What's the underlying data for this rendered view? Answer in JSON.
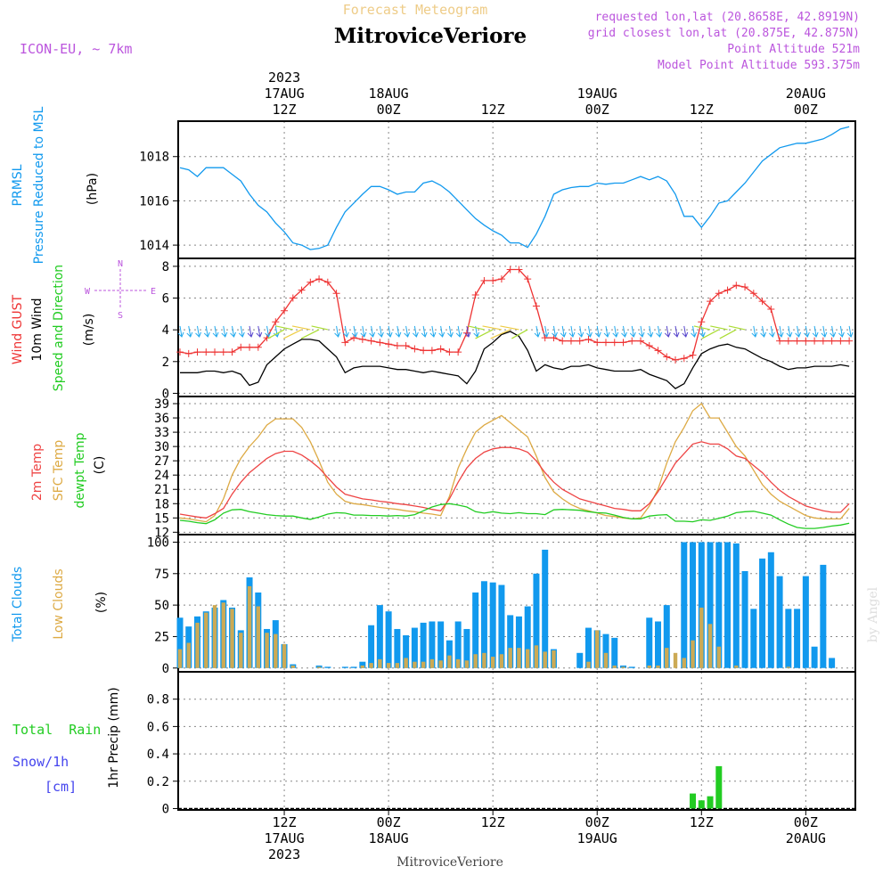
{
  "header": {
    "top_title": "Forecast Meteogram",
    "station": "MitroviceVeriore",
    "model": "ICON-EU, ~ 7km",
    "requested": "requested lon,lat (20.8658E, 42.8919N)",
    "closest": "grid closest lon,lat (20.875E, 42.875N)",
    "point_altitude": "Point Altitude 521m",
    "model_altitude": "Model Point Altitude 593.375m"
  },
  "time_axis": {
    "top_labels": [
      {
        "h": 12,
        "lines": [
          "2023",
          "17AUG",
          "12Z"
        ]
      },
      {
        "h": 24,
        "lines": [
          "18AUG",
          "00Z"
        ]
      },
      {
        "h": 36,
        "lines": [
          "12Z"
        ]
      },
      {
        "h": 48,
        "lines": [
          "19AUG",
          "00Z"
        ]
      },
      {
        "h": 60,
        "lines": [
          "12Z"
        ]
      },
      {
        "h": 72,
        "lines": [
          "20AUG",
          "00Z"
        ]
      }
    ],
    "bottom_labels": [
      {
        "h": 12,
        "lines": [
          "12Z",
          "17AUG",
          "2023"
        ]
      },
      {
        "h": 24,
        "lines": [
          "00Z",
          "18AUG"
        ]
      },
      {
        "h": 36,
        "lines": [
          "12Z"
        ]
      },
      {
        "h": 48,
        "lines": [
          "00Z",
          "19AUG"
        ]
      },
      {
        "h": 60,
        "lines": [
          "12Z"
        ]
      },
      {
        "h": 72,
        "lines": [
          "00Z",
          "20AUG"
        ]
      }
    ],
    "footer_station": "MitroviceVeriore"
  },
  "panel_labels": {
    "prmsl": {
      "line1": "PRMSL",
      "line2": "Pressure Reduced to MSL",
      "unit": "(hPa)"
    },
    "wind": {
      "gust": "Wind GUST",
      "wind10": "10m Wind",
      "speeddir": "Speed and Direction",
      "unit": "(m/s)",
      "compass_n": "N",
      "compass_s": "S",
      "compass_w": "W",
      "compass_e": "E"
    },
    "temp": {
      "t2m": "2m Temp",
      "sfc": "SFC Temp",
      "dewpt": "dewpt Temp",
      "unit": "(C)"
    },
    "clouds": {
      "total": "Total Clouds",
      "low": "Low Clouds",
      "unit": "(%)"
    },
    "precip": {
      "rain": "Total  Rain",
      "snow": "Snow/1h",
      "snow_unit": "[cm]",
      "axis": "1hr Precip (mm)"
    }
  },
  "watermark": "by Angel",
  "colors": {
    "pressure": "#1199ee",
    "gust": "#ee3333",
    "wind": "#000000",
    "t2m": "#ee4444",
    "sfc": "#ddaa44",
    "dewpt": "#22cc22",
    "total_clouds": "#1199ee",
    "low_clouds": "#ccaa55",
    "rain": "#22cc22",
    "snow": "#4444ee",
    "header_purple": "#bb55dd",
    "title_orange": "#eecc88",
    "grid": "#888888"
  },
  "chart_data": [
    {
      "type": "line",
      "id": "pressure",
      "ylabel": "(hPa)",
      "ylim": [
        1013.4,
        1019.6
      ],
      "yticks": [
        1014,
        1016,
        1018
      ],
      "x_hours": [
        0,
        1,
        2,
        3,
        4,
        5,
        6,
        7,
        8,
        9,
        10,
        11,
        12,
        13,
        14,
        15,
        16,
        17,
        18,
        19,
        20,
        21,
        22,
        23,
        24,
        25,
        26,
        27,
        28,
        29,
        30,
        31,
        32,
        33,
        34,
        35,
        36,
        37,
        38,
        39,
        40,
        41,
        42,
        43,
        44,
        45,
        46,
        47,
        48,
        49,
        50,
        51,
        52,
        53,
        54,
        55,
        56,
        57,
        58,
        59,
        60,
        61,
        62,
        63,
        64,
        65,
        66,
        67,
        68,
        69,
        70,
        71,
        72,
        73,
        74,
        75,
        76,
        77
      ],
      "series": [
        {
          "values": [
            1017.5,
            1017.4,
            1017.1,
            1017.5,
            1017.5,
            1017.5,
            1017.2,
            1016.9,
            1016.3,
            1015.8,
            1015.5,
            1015.0,
            1014.6,
            1014.1,
            1014.0,
            1013.8,
            1013.85,
            1014.0,
            1014.8,
            1015.5,
            1015.9,
            1016.3,
            1016.65,
            1016.65,
            1016.5,
            1016.3,
            1016.4,
            1016.4,
            1016.8,
            1016.9,
            1016.7,
            1016.4,
            1016.0,
            1015.6,
            1015.2,
            1014.9,
            1014.65,
            1014.45,
            1014.1,
            1014.1,
            1013.9,
            1014.5,
            1015.3,
            1016.3,
            1016.5,
            1016.6,
            1016.65,
            1016.65,
            1016.8,
            1016.75,
            1016.8,
            1016.8,
            1016.95,
            1017.1,
            1016.95,
            1017.1,
            1016.9,
            1016.3,
            1015.3,
            1015.3,
            1014.8,
            1015.3,
            1015.9,
            1016.0,
            1016.4,
            1016.8,
            1017.3,
            1017.8,
            1018.1,
            1018.4,
            1018.5,
            1018.6,
            1018.6,
            1018.7,
            1018.8,
            1019.0,
            1019.25,
            1019.35
          ]
        }
      ]
    },
    {
      "type": "line",
      "id": "wind",
      "ylabel": "(m/s)",
      "ylim": [
        -0.2,
        8.5
      ],
      "yticks": [
        0,
        2,
        4,
        6,
        8
      ],
      "x_hours": [
        0,
        1,
        2,
        3,
        4,
        5,
        6,
        7,
        8,
        9,
        10,
        11,
        12,
        13,
        14,
        15,
        16,
        17,
        18,
        19,
        20,
        21,
        22,
        23,
        24,
        25,
        26,
        27,
        28,
        29,
        30,
        31,
        32,
        33,
        34,
        35,
        36,
        37,
        38,
        39,
        40,
        41,
        42,
        43,
        44,
        45,
        46,
        47,
        48,
        49,
        50,
        51,
        52,
        53,
        54,
        55,
        56,
        57,
        58,
        59,
        60,
        61,
        62,
        63,
        64,
        65,
        66,
        67,
        68,
        69,
        70,
        71,
        72,
        73,
        74,
        75,
        76,
        77
      ],
      "series": [
        {
          "name": "Wind GUST",
          "values": [
            2.6,
            2.5,
            2.6,
            2.6,
            2.6,
            2.6,
            2.6,
            2.9,
            2.9,
            2.9,
            3.5,
            4.5,
            5.2,
            6.0,
            6.5,
            7.0,
            7.2,
            7.0,
            6.3,
            3.2,
            3.5,
            3.4,
            3.3,
            3.2,
            3.1,
            3.0,
            3.0,
            2.8,
            2.7,
            2.7,
            2.8,
            2.6,
            2.6,
            3.8,
            6.2,
            7.1,
            7.1,
            7.2,
            7.8,
            7.8,
            7.2,
            5.5,
            3.5,
            3.5,
            3.3,
            3.3,
            3.3,
            3.4,
            3.2,
            3.2,
            3.2,
            3.2,
            3.3,
            3.3,
            3.0,
            2.7,
            2.3,
            2.1,
            2.2,
            2.4,
            4.5,
            5.8,
            6.3,
            6.5,
            6.8,
            6.7,
            6.3,
            5.8,
            5.3,
            3.3,
            3.3,
            3.3,
            3.3,
            3.3,
            3.3,
            3.3,
            3.3,
            3.3
          ]
        },
        {
          "name": "10m Wind",
          "values": [
            1.3,
            1.3,
            1.3,
            1.4,
            1.4,
            1.3,
            1.4,
            1.2,
            0.5,
            0.7,
            1.8,
            2.3,
            2.8,
            3.1,
            3.4,
            3.4,
            3.3,
            2.8,
            2.3,
            1.3,
            1.6,
            1.7,
            1.7,
            1.7,
            1.6,
            1.5,
            1.5,
            1.4,
            1.3,
            1.4,
            1.3,
            1.2,
            1.1,
            0.6,
            1.4,
            2.8,
            3.2,
            3.7,
            3.9,
            3.6,
            2.7,
            1.4,
            1.8,
            1.6,
            1.5,
            1.7,
            1.7,
            1.8,
            1.6,
            1.5,
            1.4,
            1.4,
            1.4,
            1.5,
            1.2,
            1.0,
            0.8,
            0.3,
            0.6,
            1.6,
            2.5,
            2.8,
            3.0,
            3.1,
            2.9,
            2.8,
            2.5,
            2.2,
            2.0,
            1.7,
            1.5,
            1.6,
            1.6,
            1.7,
            1.7,
            1.7,
            1.8,
            1.7
          ]
        }
      ]
    },
    {
      "type": "line",
      "id": "temperature",
      "ylabel": "(C)",
      "ylim": [
        11.5,
        40.5
      ],
      "yticks": [
        12,
        15,
        18,
        21,
        24,
        27,
        30,
        33,
        36,
        39
      ],
      "x_hours": [
        0,
        1,
        2,
        3,
        4,
        5,
        6,
        7,
        8,
        9,
        10,
        11,
        12,
        13,
        14,
        15,
        16,
        17,
        18,
        19,
        20,
        21,
        22,
        23,
        24,
        25,
        26,
        27,
        28,
        29,
        30,
        31,
        32,
        33,
        34,
        35,
        36,
        37,
        38,
        39,
        40,
        41,
        42,
        43,
        44,
        45,
        46,
        47,
        48,
        49,
        50,
        51,
        52,
        53,
        54,
        55,
        56,
        57,
        58,
        59,
        60,
        61,
        62,
        63,
        64,
        65,
        66,
        67,
        68,
        69,
        70,
        71,
        72,
        73,
        74,
        75,
        76,
        77
      ],
      "series": [
        {
          "name": "2m Temp",
          "values": [
            15.8,
            15.5,
            15.2,
            15.0,
            15.9,
            17.0,
            20.0,
            22.5,
            24.5,
            26.0,
            27.5,
            28.5,
            29.0,
            29.0,
            28.2,
            27.0,
            25.5,
            23.5,
            21.5,
            20.0,
            19.5,
            19.0,
            18.8,
            18.5,
            18.3,
            18.0,
            17.8,
            17.5,
            17.2,
            16.8,
            16.5,
            19.0,
            22.5,
            25.5,
            27.5,
            28.8,
            29.5,
            29.8,
            29.8,
            29.5,
            28.8,
            27.0,
            24.5,
            22.5,
            21.0,
            20.0,
            19.0,
            18.5,
            18.0,
            17.5,
            17.0,
            16.8,
            16.5,
            16.5,
            18.0,
            20.5,
            23.5,
            26.5,
            28.5,
            30.5,
            31.0,
            30.5,
            30.5,
            29.5,
            28.0,
            27.5,
            26.0,
            24.5,
            22.5,
            20.8,
            19.5,
            18.5,
            17.5,
            17.0,
            16.5,
            16.2,
            16.2,
            18.0
          ]
        },
        {
          "name": "SFC Temp",
          "values": [
            15.0,
            14.8,
            14.5,
            14.2,
            15.5,
            19.0,
            24.0,
            27.5,
            30.0,
            32.0,
            34.5,
            35.8,
            35.8,
            35.8,
            34.0,
            31.0,
            27.0,
            22.5,
            20.0,
            18.5,
            18.0,
            17.8,
            17.5,
            17.2,
            17.0,
            16.8,
            16.5,
            16.3,
            16.0,
            15.8,
            15.5,
            19.5,
            25.5,
            29.5,
            33.0,
            34.5,
            35.5,
            36.5,
            35.0,
            33.5,
            32.0,
            28.0,
            23.5,
            20.5,
            19.0,
            17.8,
            17.0,
            16.5,
            16.0,
            15.5,
            15.3,
            15.0,
            14.8,
            15.0,
            17.5,
            21.0,
            26.5,
            31.0,
            34.0,
            37.5,
            39.0,
            36.0,
            36.0,
            33.0,
            30.0,
            28.0,
            25.0,
            22.0,
            20.0,
            18.5,
            17.5,
            16.5,
            15.5,
            15.0,
            14.8,
            14.8,
            14.8,
            17.0
          ]
        },
        {
          "name": "dewpt Temp",
          "values": [
            14.5,
            14.3,
            14.0,
            13.8,
            14.6,
            16.0,
            16.7,
            16.8,
            16.3,
            16.0,
            15.7,
            15.5,
            15.4,
            15.4,
            15.0,
            14.7,
            15.2,
            15.8,
            16.1,
            16.0,
            15.6,
            15.6,
            15.5,
            15.5,
            15.4,
            15.5,
            15.4,
            15.7,
            16.5,
            17.3,
            17.8,
            18.0,
            17.7,
            17.3,
            16.3,
            16.0,
            16.3,
            16.0,
            15.9,
            16.1,
            15.9,
            15.9,
            15.7,
            16.7,
            16.8,
            16.7,
            16.6,
            16.3,
            16.1,
            16.0,
            15.6,
            15.1,
            14.8,
            14.8,
            15.4,
            15.6,
            15.7,
            14.3,
            14.3,
            14.2,
            14.6,
            14.5,
            14.9,
            15.4,
            16.1,
            16.3,
            16.4,
            16.0,
            15.6,
            14.6,
            13.7,
            13.0,
            12.8,
            12.8,
            13.0,
            13.3,
            13.5,
            13.9
          ]
        }
      ]
    },
    {
      "type": "bar",
      "id": "clouds",
      "ylabel": "(%)",
      "ylim": [
        -3,
        106
      ],
      "yticks": [
        0,
        25,
        50,
        75,
        100
      ],
      "x_hours": [
        0,
        1,
        2,
        3,
        4,
        5,
        6,
        7,
        8,
        9,
        10,
        11,
        12,
        13,
        14,
        15,
        16,
        17,
        18,
        19,
        20,
        21,
        22,
        23,
        24,
        25,
        26,
        27,
        28,
        29,
        30,
        31,
        32,
        33,
        34,
        35,
        36,
        37,
        38,
        39,
        40,
        41,
        42,
        43,
        44,
        45,
        46,
        47,
        48,
        49,
        50,
        51,
        52,
        53,
        54,
        55,
        56,
        57,
        58,
        59,
        60,
        61,
        62,
        63,
        64,
        65,
        66,
        67,
        68,
        69,
        70,
        71,
        72,
        73,
        74,
        75,
        76,
        77
      ],
      "series": [
        {
          "name": "Total Clouds",
          "values": [
            40,
            33,
            41,
            45,
            48,
            54,
            48,
            30,
            72,
            60,
            31,
            38,
            19,
            3,
            0,
            0,
            2,
            1,
            0,
            1,
            1,
            5,
            34,
            50,
            45,
            31,
            26,
            32,
            36,
            37,
            37,
            22,
            37,
            31,
            60,
            69,
            68,
            66,
            42,
            41,
            49,
            75,
            94,
            15,
            0,
            0,
            12,
            32,
            30,
            27,
            24,
            2,
            1,
            0,
            40,
            37,
            50,
            0,
            100,
            100,
            100,
            100,
            100,
            100,
            99,
            77,
            47,
            87,
            92,
            73,
            47,
            47,
            73,
            17,
            82,
            8,
            0,
            0
          ]
        },
        {
          "name": "Low Clouds",
          "values": [
            15,
            20,
            36,
            44,
            50,
            52,
            47,
            28,
            65,
            49,
            28,
            27,
            19,
            2,
            0,
            0,
            1,
            0,
            0,
            0,
            0,
            2,
            4,
            7,
            4,
            4,
            8,
            5,
            5,
            7,
            6,
            10,
            7,
            6,
            11,
            12,
            9,
            11,
            16,
            16,
            15,
            18,
            13,
            14,
            0,
            0,
            0,
            5,
            30,
            12,
            2,
            1,
            0,
            0,
            2,
            2,
            16,
            12,
            8,
            22,
            48,
            35,
            17,
            0,
            2,
            0,
            0,
            0,
            0,
            0,
            1,
            0,
            0,
            0,
            0,
            0,
            0,
            0
          ]
        }
      ]
    },
    {
      "type": "bar",
      "id": "precipitation",
      "ylabel": "1hr Precip (mm)",
      "ylim": [
        -0.01,
        1.0
      ],
      "yticks": [
        0,
        0.2,
        0.4,
        0.6,
        0.8
      ],
      "x_hours": [
        59,
        60,
        61,
        62
      ],
      "series": [
        {
          "name": "Total Rain",
          "values": [
            0.11,
            0.06,
            0.09,
            0.31
          ]
        }
      ]
    }
  ]
}
